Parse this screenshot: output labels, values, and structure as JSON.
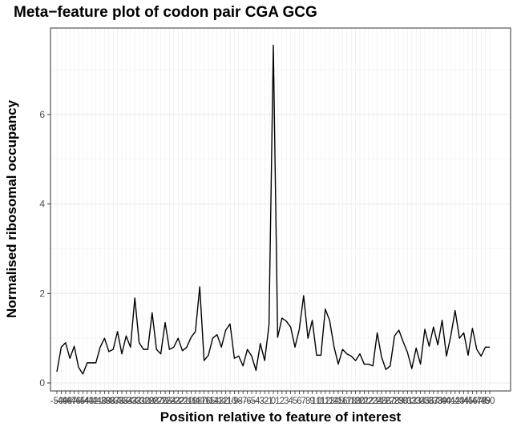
{
  "chart_data": {
    "type": "line",
    "title": "Meta−feature plot of codon pair CGA GCG",
    "xlabel": "Position relative to feature of interest",
    "ylabel": "Normalised ribosomal occupancy",
    "xlim": [
      -50,
      50
    ],
    "ylim": [
      0,
      7.6
    ],
    "y_ticks": [
      0,
      2,
      4,
      6
    ],
    "grid": true,
    "series": [
      {
        "x": [
          -50,
          -49,
          -48,
          -47,
          -46,
          -45,
          -44,
          -43,
          -42,
          -41,
          -40,
          -39,
          -38,
          -37,
          -36,
          -35,
          -34,
          -33,
          -32,
          -31,
          -30,
          -29,
          -28,
          -27,
          -26,
          -25,
          -24,
          -23,
          -22,
          -21,
          -20,
          -19,
          -18,
          -17,
          -16,
          -15,
          -14,
          -13,
          -12,
          -11,
          -10,
          -9,
          -8,
          -7,
          -6,
          -5,
          -4,
          -3,
          -2,
          -1,
          0,
          1,
          2,
          3,
          4,
          5,
          6,
          7,
          8,
          9,
          10,
          11,
          12,
          13,
          14,
          15,
          16,
          17,
          18,
          19,
          20,
          21,
          22,
          23,
          24,
          25,
          26,
          27,
          28,
          29,
          30,
          31,
          32,
          33,
          34,
          35,
          36,
          37,
          38,
          39,
          40,
          41,
          42,
          43,
          44,
          45,
          46,
          47,
          48,
          49,
          50
        ],
        "values": [
          0.25,
          0.8,
          0.9,
          0.55,
          0.82,
          0.35,
          0.2,
          0.45,
          0.45,
          0.45,
          0.8,
          1.0,
          0.7,
          0.75,
          1.15,
          0.65,
          1.05,
          0.8,
          1.9,
          0.9,
          0.75,
          0.75,
          1.57,
          0.75,
          0.65,
          1.35,
          0.75,
          0.8,
          1.0,
          0.72,
          0.8,
          1.02,
          1.15,
          2.15,
          0.5,
          0.62,
          1.0,
          1.08,
          0.8,
          1.18,
          1.32,
          0.55,
          0.6,
          0.38,
          0.75,
          0.6,
          0.28,
          0.88,
          0.5,
          1.3,
          7.55,
          1.02,
          1.45,
          1.38,
          1.25,
          0.8,
          1.2,
          1.95,
          1.0,
          1.4,
          0.62,
          0.62,
          1.65,
          1.4,
          0.82,
          0.42,
          0.75,
          0.65,
          0.6,
          0.5,
          0.65,
          0.42,
          0.42,
          0.38,
          1.12,
          0.58,
          0.3,
          0.38,
          1.05,
          1.18,
          0.92,
          0.68,
          0.32,
          0.78,
          0.42,
          1.2,
          0.82,
          1.25,
          0.85,
          1.4,
          0.6,
          1.05,
          1.62,
          1.0,
          1.12,
          0.62,
          1.22,
          0.75,
          0.6,
          0.8,
          0.8
        ]
      }
    ]
  }
}
